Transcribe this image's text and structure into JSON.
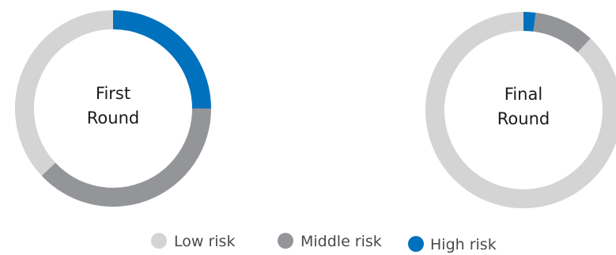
{
  "chart_data": [
    {
      "type": "pie",
      "style": "donut",
      "center_label": [
        "First",
        "Round"
      ],
      "categories": [
        "High risk",
        "Middle risk",
        "Low risk"
      ],
      "values": [
        25,
        38,
        37
      ]
    },
    {
      "type": "pie",
      "style": "donut",
      "center_label": [
        "Final",
        "Round"
      ],
      "categories": [
        "High risk",
        "Middle risk",
        "Low risk"
      ],
      "values": [
        2,
        10,
        88
      ]
    }
  ],
  "legend": [
    {
      "label": "Low risk",
      "color": "#d4d4d4"
    },
    {
      "label": "Middle risk",
      "color": "#939598"
    },
    {
      "label": "High risk",
      "color": "#0071bc"
    }
  ],
  "colors": {
    "High risk": "#0071bc",
    "Middle risk": "#939598",
    "Low risk": "#d4d4d4"
  }
}
